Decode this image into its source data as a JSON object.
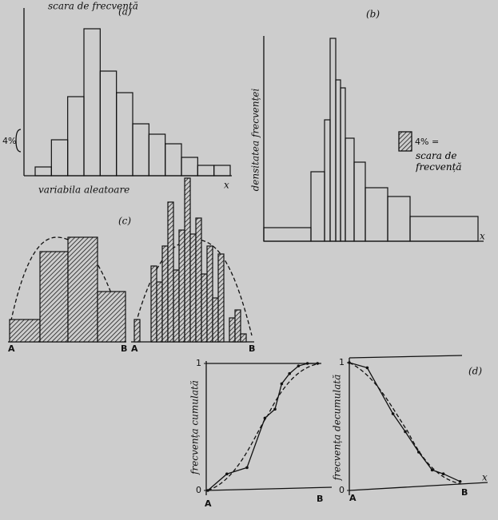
{
  "chart_data": [
    {
      "type": "histogram",
      "label": "(a)",
      "scale_label": "scara de frecvență",
      "scale_value": "4%",
      "x_label": "variabila aleatoare",
      "x_end": "x",
      "bins": [
        0,
        1,
        2,
        3,
        4,
        5,
        6,
        7,
        8,
        9,
        10,
        11,
        12
      ],
      "values": [
        11,
        45,
        99,
        184,
        131,
        104,
        65,
        52,
        40,
        23,
        13,
        13
      ],
      "xlim": [
        0,
        12
      ],
      "ylim": [
        0,
        210
      ],
      "hatch": false
    },
    {
      "type": "histogram",
      "label": "(b)",
      "y_label": "densitatea frecvenței",
      "legend_value": "4% =",
      "legend_label": "scara de frecvență",
      "x_end": "x",
      "bins": [
        0,
        59,
        76,
        83,
        90,
        96,
        102,
        113,
        127,
        155,
        183,
        268
      ],
      "values": [
        17,
        87,
        152,
        254,
        202,
        192,
        129,
        99,
        67,
        56,
        31
      ],
      "xlim": [
        0,
        268
      ],
      "ylim": [
        0,
        255
      ],
      "hatch": false
    },
    {
      "type": "histogram",
      "label": "(c)",
      "start": "A",
      "end": "B",
      "bins": [
        0,
        38,
        73,
        110,
        145
      ],
      "values": [
        28,
        113,
        131,
        63
      ],
      "xlim": [
        0,
        145
      ],
      "ylim": [
        0,
        220
      ],
      "hatch": true
    },
    {
      "type": "histogram",
      "start": "A",
      "end": "B",
      "bins": [
        0,
        7,
        14,
        21,
        28,
        35,
        42,
        49,
        56,
        63,
        70,
        77,
        84,
        91,
        98,
        105,
        112,
        119,
        126,
        133,
        140,
        147
      ],
      "values": [
        28,
        0,
        0,
        95,
        75,
        120,
        175,
        90,
        140,
        205,
        135,
        155,
        85,
        120,
        55,
        110,
        0,
        30,
        40,
        10,
        0
      ],
      "xlim": [
        0,
        147
      ],
      "ylim": [
        0,
        220
      ],
      "hatch": true
    },
    {
      "type": "line",
      "y_label": "frecvența cumulată",
      "start": "A",
      "end": "B",
      "x": [
        0,
        0.17,
        0.35,
        0.51,
        0.6,
        0.66,
        0.73,
        0.81,
        0.89,
        0.98
      ],
      "values": [
        0,
        0.13,
        0.18,
        0.57,
        0.64,
        0.84,
        0.92,
        0.98,
        1.0,
        1.0
      ],
      "xlim": [
        0,
        1
      ],
      "ylim": [
        0,
        1
      ],
      "yticks": [
        0,
        1
      ]
    },
    {
      "type": "line",
      "label": "(d)",
      "y_label": "frecvența decumulată",
      "start": "A",
      "end": "B",
      "x_end": "x",
      "x": [
        0,
        0.16,
        0.39,
        0.5,
        0.62,
        0.74,
        0.84,
        0.99
      ],
      "values": [
        1,
        0.96,
        0.6,
        0.46,
        0.3,
        0.16,
        0.13,
        0.07
      ],
      "xlim": [
        0,
        1
      ],
      "ylim": [
        0,
        1
      ],
      "yticks": [
        0,
        1
      ]
    }
  ]
}
